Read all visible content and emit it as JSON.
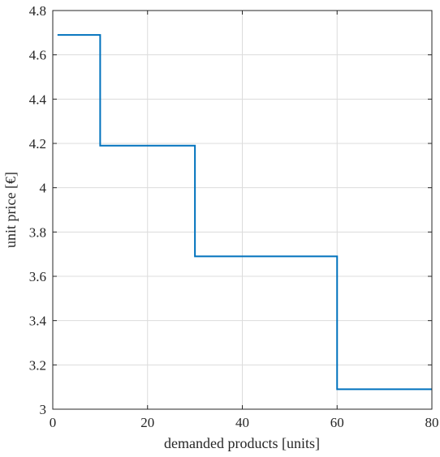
{
  "chart_data": {
    "type": "line",
    "title": "",
    "xlabel": "demanded products [units]",
    "ylabel": "unit price [€]",
    "xlim": [
      0,
      80
    ],
    "ylim": [
      3,
      4.8
    ],
    "x_ticks": [
      0,
      20,
      40,
      60,
      80
    ],
    "y_ticks": [
      3,
      3.2,
      3.4,
      3.6,
      3.8,
      4,
      4.2,
      4.4,
      4.6,
      4.8
    ],
    "x_tick_labels": [
      "0",
      "20",
      "40",
      "60",
      "80"
    ],
    "y_tick_labels": [
      "3",
      "3.2",
      "3.4",
      "3.6",
      "3.8",
      "4",
      "4.2",
      "4.4",
      "4.6",
      "4.8"
    ],
    "grid": true,
    "series": [
      {
        "color": "#0072BD",
        "step": true,
        "x": [
          1,
          10,
          10,
          30,
          30,
          60,
          60,
          80
        ],
        "y": [
          4.69,
          4.69,
          4.19,
          4.19,
          3.69,
          3.69,
          3.09,
          3.09
        ]
      }
    ]
  }
}
